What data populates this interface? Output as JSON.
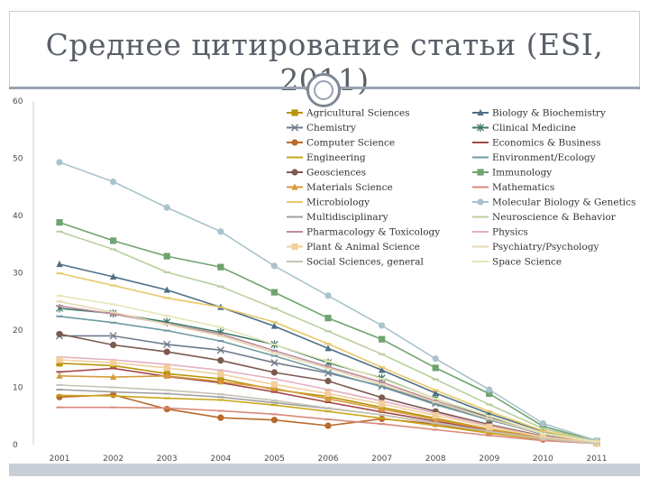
{
  "title": "Среднее цитирование статьи (ESI, 2011)",
  "chart_data": {
    "type": "line",
    "title": "Среднее цитирование статьи (ESI, 2011)",
    "x": [
      "2001",
      "2002",
      "2003",
      "2004",
      "2005",
      "2006",
      "2007",
      "2008",
      "2009",
      "2010",
      "2011"
    ],
    "ylim": [
      0,
      60
    ],
    "yticks": [
      "0",
      "10",
      "20",
      "30",
      "40",
      "50",
      "60"
    ],
    "grid": false,
    "legend": "top-right",
    "series": [
      {
        "name": "Agricultural Sciences",
        "color": "#b8950a",
        "marker": "square",
        "values": [
          14.2,
          13.8,
          12.4,
          11.5,
          9.6,
          8.4,
          6.5,
          4.6,
          2.7,
          1.2,
          0.3
        ]
      },
      {
        "name": "Biology & Biochemistry",
        "color": "#4f7087",
        "marker": "triangle",
        "values": [
          31.5,
          29.3,
          27.0,
          24.0,
          20.7,
          16.8,
          13.0,
          9.0,
          5.4,
          2.3,
          0.5
        ]
      },
      {
        "name": "Chemistry",
        "color": "#6f7b8a",
        "marker": "x",
        "values": [
          19.0,
          19.0,
          17.5,
          16.5,
          14.3,
          12.5,
          10.2,
          7.2,
          4.4,
          1.8,
          0.4
        ]
      },
      {
        "name": "Clinical Medicine",
        "color": "#3f7a6a",
        "marker": "star",
        "values": [
          23.8,
          22.9,
          21.4,
          19.6,
          17.5,
          14.3,
          11.6,
          8.0,
          4.8,
          2.0,
          0.4
        ]
      },
      {
        "name": "Computer Science",
        "color": "#b86a2a",
        "marker": "circle",
        "values": [
          8.3,
          8.7,
          6.2,
          4.7,
          4.3,
          3.3,
          4.5,
          3.6,
          2.1,
          0.9,
          0.2
        ]
      },
      {
        "name": "Economics & Business",
        "color": "#a34848",
        "marker": "dash",
        "values": [
          12.7,
          13.3,
          11.9,
          10.8,
          9.2,
          7.4,
          5.7,
          4.1,
          2.5,
          1.0,
          0.2
        ]
      },
      {
        "name": "Engineering",
        "color": "#c9a61a",
        "marker": "dash",
        "values": [
          8.6,
          8.5,
          8.1,
          7.8,
          6.9,
          5.8,
          4.6,
          3.3,
          2.0,
          0.9,
          0.2
        ]
      },
      {
        "name": "Environment/Ecology",
        "color": "#6e9aa3",
        "marker": "dash",
        "values": [
          22.4,
          21.3,
          19.9,
          18.1,
          15.5,
          12.7,
          10.1,
          7.0,
          4.3,
          1.9,
          0.4
        ]
      },
      {
        "name": "Geosciences",
        "color": "#7d5a4f",
        "marker": "circle",
        "values": [
          19.3,
          17.4,
          16.2,
          14.7,
          12.6,
          11.1,
          8.2,
          5.8,
          3.5,
          1.5,
          0.3
        ]
      },
      {
        "name": "Immunology",
        "color": "#6fa36f",
        "marker": "square",
        "values": [
          38.8,
          35.6,
          32.9,
          31.0,
          26.6,
          22.1,
          18.4,
          13.4,
          8.9,
          3.2,
          0.6
        ]
      },
      {
        "name": "Materials Science",
        "color": "#d79a3c",
        "marker": "triangle",
        "values": [
          12.0,
          11.8,
          12.0,
          11.0,
          9.8,
          8.0,
          6.2,
          4.4,
          2.6,
          1.1,
          0.2
        ]
      },
      {
        "name": "Mathematics",
        "color": "#d98a7a",
        "marker": "dash",
        "values": [
          6.5,
          6.5,
          6.4,
          5.9,
          5.3,
          4.4,
          3.6,
          2.6,
          1.6,
          0.7,
          0.2
        ]
      },
      {
        "name": "Microbiology",
        "color": "#e9c766",
        "marker": "dash",
        "values": [
          29.9,
          27.8,
          25.6,
          24.0,
          21.4,
          17.6,
          13.5,
          9.5,
          5.8,
          2.4,
          0.5
        ]
      },
      {
        "name": "Molecular Biology & Genetics",
        "color": "#a9c3cc",
        "marker": "circle",
        "values": [
          49.3,
          45.9,
          41.4,
          37.2,
          31.2,
          26.0,
          20.8,
          15.0,
          9.6,
          3.7,
          0.7
        ]
      },
      {
        "name": "Multidisciplinary",
        "color": "#9f9f9f",
        "marker": "dash",
        "values": [
          9.6,
          9.2,
          8.9,
          8.3,
          7.3,
          6.3,
          5.2,
          3.8,
          2.3,
          1.0,
          0.2
        ]
      },
      {
        "name": "Neuroscience & Behavior",
        "color": "#b9cf9e",
        "marker": "dash",
        "values": [
          37.2,
          34.1,
          30.1,
          27.6,
          23.8,
          19.8,
          15.8,
          11.4,
          7.0,
          2.8,
          0.5
        ]
      },
      {
        "name": "Pharmacology & Toxicology",
        "color": "#c08a9a",
        "marker": "dash",
        "values": [
          24.2,
          22.8,
          21.1,
          19.3,
          16.4,
          13.6,
          10.9,
          7.6,
          4.6,
          1.9,
          0.4
        ]
      },
      {
        "name": "Physics",
        "color": "#e4b0c0",
        "marker": "dash",
        "values": [
          15.3,
          14.8,
          14.0,
          13.0,
          11.5,
          9.6,
          7.6,
          5.5,
          3.3,
          1.4,
          0.3
        ]
      },
      {
        "name": "Plant & Animal Science",
        "color": "#f2cf9c",
        "marker": "square",
        "values": [
          14.8,
          14.3,
          13.4,
          12.3,
          10.5,
          8.9,
          7.1,
          5.1,
          3.1,
          1.3,
          0.3
        ]
      },
      {
        "name": "Psychiatry/Psychology",
        "color": "#e6d9b0",
        "marker": "dash",
        "values": [
          25.0,
          23.1,
          21.0,
          19.0,
          16.0,
          13.3,
          10.5,
          7.4,
          4.5,
          1.9,
          0.4
        ]
      },
      {
        "name": "Social Sciences, general",
        "color": "#c8c2b5",
        "marker": "dash",
        "values": [
          10.4,
          10.0,
          9.5,
          8.8,
          7.7,
          6.4,
          5.2,
          3.7,
          2.3,
          1.0,
          0.2
        ]
      },
      {
        "name": "Space Science",
        "color": "#e5e6b6",
        "marker": "dash",
        "values": [
          26.0,
          24.5,
          22.5,
          20.5,
          17.5,
          14.5,
          11.5,
          8.0,
          5.0,
          2.0,
          0.5
        ]
      }
    ]
  }
}
